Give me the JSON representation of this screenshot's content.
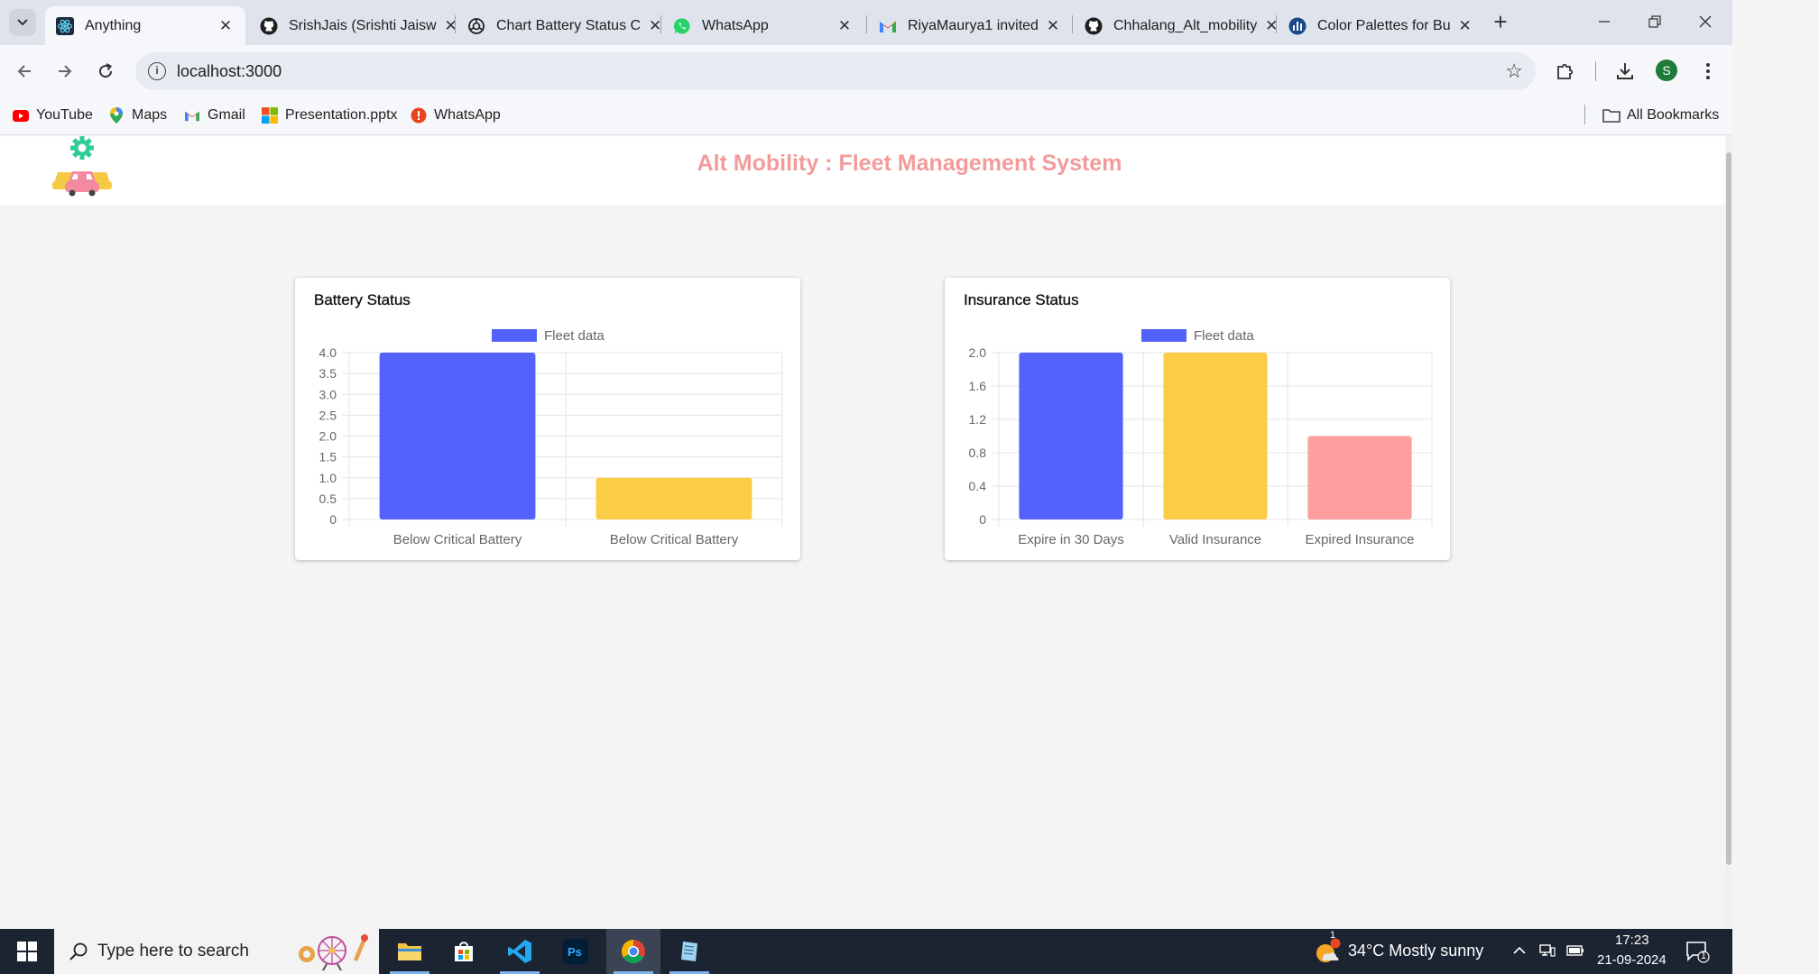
{
  "browser": {
    "tabs": [
      {
        "label": "Anything",
        "active": true,
        "icon": "react-icon"
      },
      {
        "label": "SrishJais (Srishti Jaisw",
        "active": false,
        "icon": "github-icon"
      },
      {
        "label": "Chart Battery Status C",
        "active": false,
        "icon": "chatgpt-icon"
      },
      {
        "label": "WhatsApp",
        "active": false,
        "icon": "whatsapp-icon"
      },
      {
        "label": "RiyaMaurya1 invited",
        "active": false,
        "icon": "gmail-icon"
      },
      {
        "label": "Chhalang_Alt_mobility",
        "active": false,
        "icon": "github-icon"
      },
      {
        "label": "Color Palettes for Bu",
        "active": false,
        "icon": "chart-icon"
      }
    ],
    "new_tab": "+",
    "url": "localhost:3000",
    "profile_initial": "S",
    "bookmarks": [
      {
        "label": "YouTube",
        "icon": "youtube-icon"
      },
      {
        "label": "Maps",
        "icon": "maps-icon"
      },
      {
        "label": "Gmail",
        "icon": "gmail-icon"
      },
      {
        "label": "Presentation.pptx",
        "icon": "office-icon"
      },
      {
        "label": "WhatsApp",
        "icon": "whatsapp-icon"
      }
    ],
    "all_bookmarks": "All Bookmarks"
  },
  "app": {
    "title": "Alt Mobility : Fleet Management System",
    "logo": "fleet-logo-icon"
  },
  "colors": {
    "blue": "#5462fc",
    "yellow": "#fbcd46",
    "pink": "#fe9f9f",
    "title_pink": "#f39b9b"
  },
  "chart_data": [
    {
      "type": "bar",
      "title": "Battery Status",
      "legend": "Fleet data",
      "legend_position": "top",
      "categories": [
        "Below Critical Battery",
        "Below Critical Battery"
      ],
      "values": [
        4,
        1
      ],
      "colors": [
        "#5462fc",
        "#fbcd46"
      ],
      "ylim": [
        0,
        4
      ],
      "yticks": [
        0,
        0.5,
        1.0,
        1.5,
        2.0,
        2.5,
        3.0,
        3.5,
        4.0
      ],
      "ytick_labels": [
        "0",
        "0.5",
        "1.0",
        "1.5",
        "2.0",
        "2.5",
        "3.0",
        "3.5",
        "4.0"
      ],
      "grid": true
    },
    {
      "type": "bar",
      "title": "Insurance Status",
      "legend": "Fleet data",
      "legend_position": "top",
      "categories": [
        "Expire in 30 Days",
        "Valid Insurance",
        "Expired Insurance"
      ],
      "values": [
        2,
        2,
        1
      ],
      "colors": [
        "#5462fc",
        "#fbcd46",
        "#fe9f9f"
      ],
      "ylim": [
        0,
        2
      ],
      "yticks": [
        0,
        0.4,
        0.8,
        1.2,
        1.6,
        2.0
      ],
      "ytick_labels": [
        "0",
        "0.4",
        "0.8",
        "1.2",
        "1.6",
        "2.0"
      ],
      "grid": true
    }
  ],
  "taskbar": {
    "search_placeholder": "Type here to search",
    "weather": "34°C  Mostly sunny",
    "weather_badge": "1",
    "time": "17:23",
    "date": "21-09-2024",
    "notification_count": "1"
  }
}
